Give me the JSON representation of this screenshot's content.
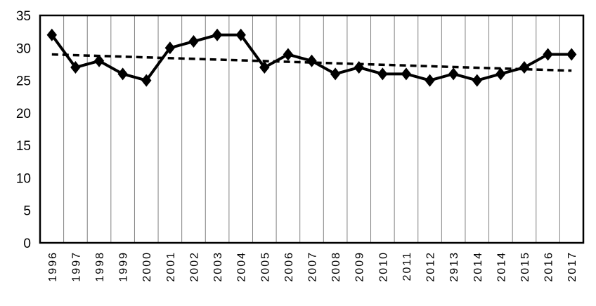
{
  "chart_data": {
    "type": "line",
    "title": "",
    "xlabel": "",
    "ylabel": "",
    "categories": [
      "1996",
      "1997",
      "1998",
      "1999",
      "2000",
      "2001",
      "2002",
      "2003",
      "2004",
      "2005",
      "2006",
      "2007",
      "2008",
      "2009",
      "2010",
      "2011",
      "2012",
      "2913",
      "2014",
      "2014",
      "2015",
      "2016",
      "2017"
    ],
    "series": [
      {
        "values": [
          32,
          27,
          28,
          26,
          25,
          30,
          31,
          32,
          32,
          27,
          29,
          28,
          26,
          27,
          26,
          26,
          25,
          26,
          25,
          26,
          27,
          29,
          29
        ],
        "marker": "diamond",
        "color": "#000000",
        "style": "solid"
      }
    ],
    "trendline": {
      "type": "linear",
      "start": 29.0,
      "end": 26.5,
      "style": "dashed",
      "color": "#000000"
    },
    "ylim": [
      0,
      35
    ],
    "yticks": [
      "0",
      "5",
      "10",
      "15",
      "20",
      "25",
      "30",
      "35"
    ],
    "grid": "vertical",
    "legend": "none"
  }
}
